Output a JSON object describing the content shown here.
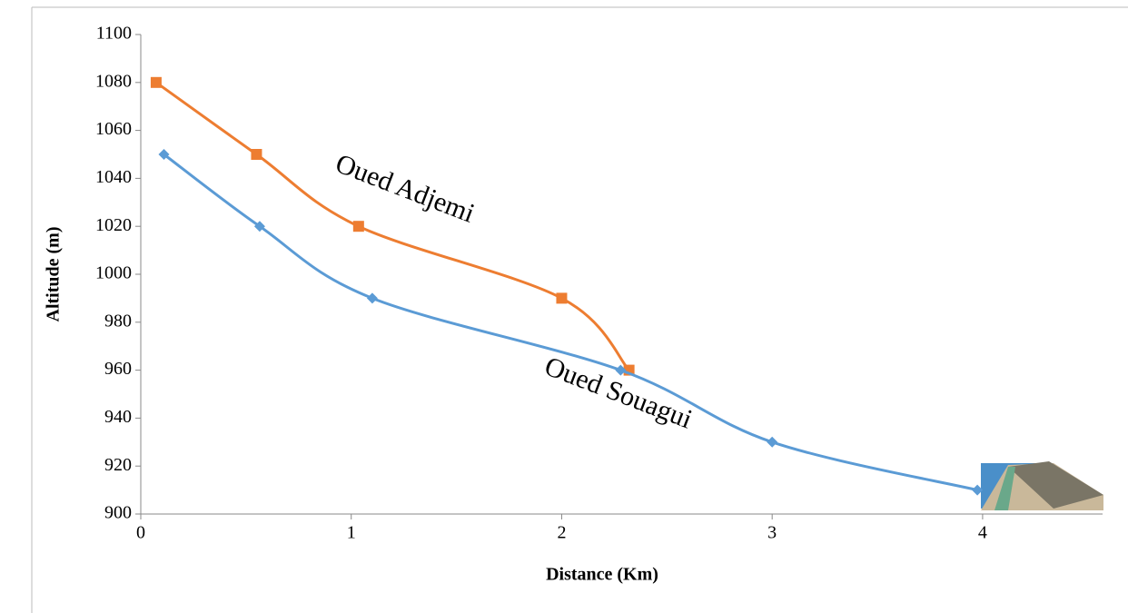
{
  "chart_data": {
    "type": "line",
    "series": [
      {
        "name": "Oued Adjemi",
        "color": "#ed7d31",
        "marker": "square",
        "x": [
          0.073,
          0.55,
          1.035,
          2.0,
          2.32
        ],
        "values": [
          1080,
          1050,
          1020,
          990,
          960
        ]
      },
      {
        "name": "Oued Souagui",
        "color": "#5b9bd5",
        "marker": "diamond",
        "x": [
          0.11,
          0.565,
          1.1,
          2.28,
          3.0,
          3.975
        ],
        "values": [
          1050,
          1020,
          990,
          960,
          930,
          910
        ]
      }
    ],
    "xlabel": "Distance (Km)",
    "ylabel": "Altitude (m)",
    "xlim": [
      0,
      4.57
    ],
    "xticks": [
      0,
      1,
      2,
      3,
      4
    ],
    "ylim": [
      900,
      1100
    ],
    "yticks": [
      900,
      920,
      940,
      960,
      980,
      1000,
      1020,
      1040,
      1060,
      1080,
      1100
    ],
    "smooth": true
  }
}
